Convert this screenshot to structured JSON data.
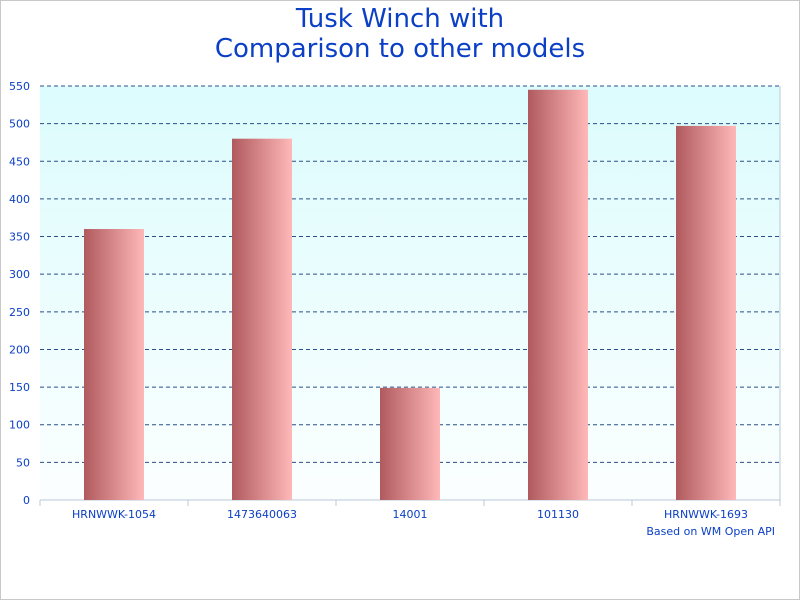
{
  "chart_data": {
    "type": "bar",
    "title_lines": [
      "Tusk Winch with",
      "Comparison to other models"
    ],
    "categories": [
      "HRNWWK-1054",
      "1473640063",
      "14001",
      "101130",
      "HRNWWK-1693"
    ],
    "values": [
      360,
      480,
      149,
      545,
      497
    ],
    "ylim": [
      0,
      550
    ],
    "yticks": [
      "0",
      "50",
      "100",
      "150",
      "200",
      "250",
      "300",
      "350",
      "400",
      "450",
      "500",
      "550"
    ],
    "grid": true,
    "footnote": "Based on WM Open API"
  },
  "colors": {
    "title": "#0a3fc6",
    "tick_label": "#0a3fc6",
    "grid": "#2a4f8a",
    "plot_bg_top": "#dcfcfd",
    "plot_bg_bottom": "#fbfefe",
    "bar_dark": "#b05a5e",
    "bar_light": "#ffb8b8",
    "axis": "#b8c8d8"
  }
}
